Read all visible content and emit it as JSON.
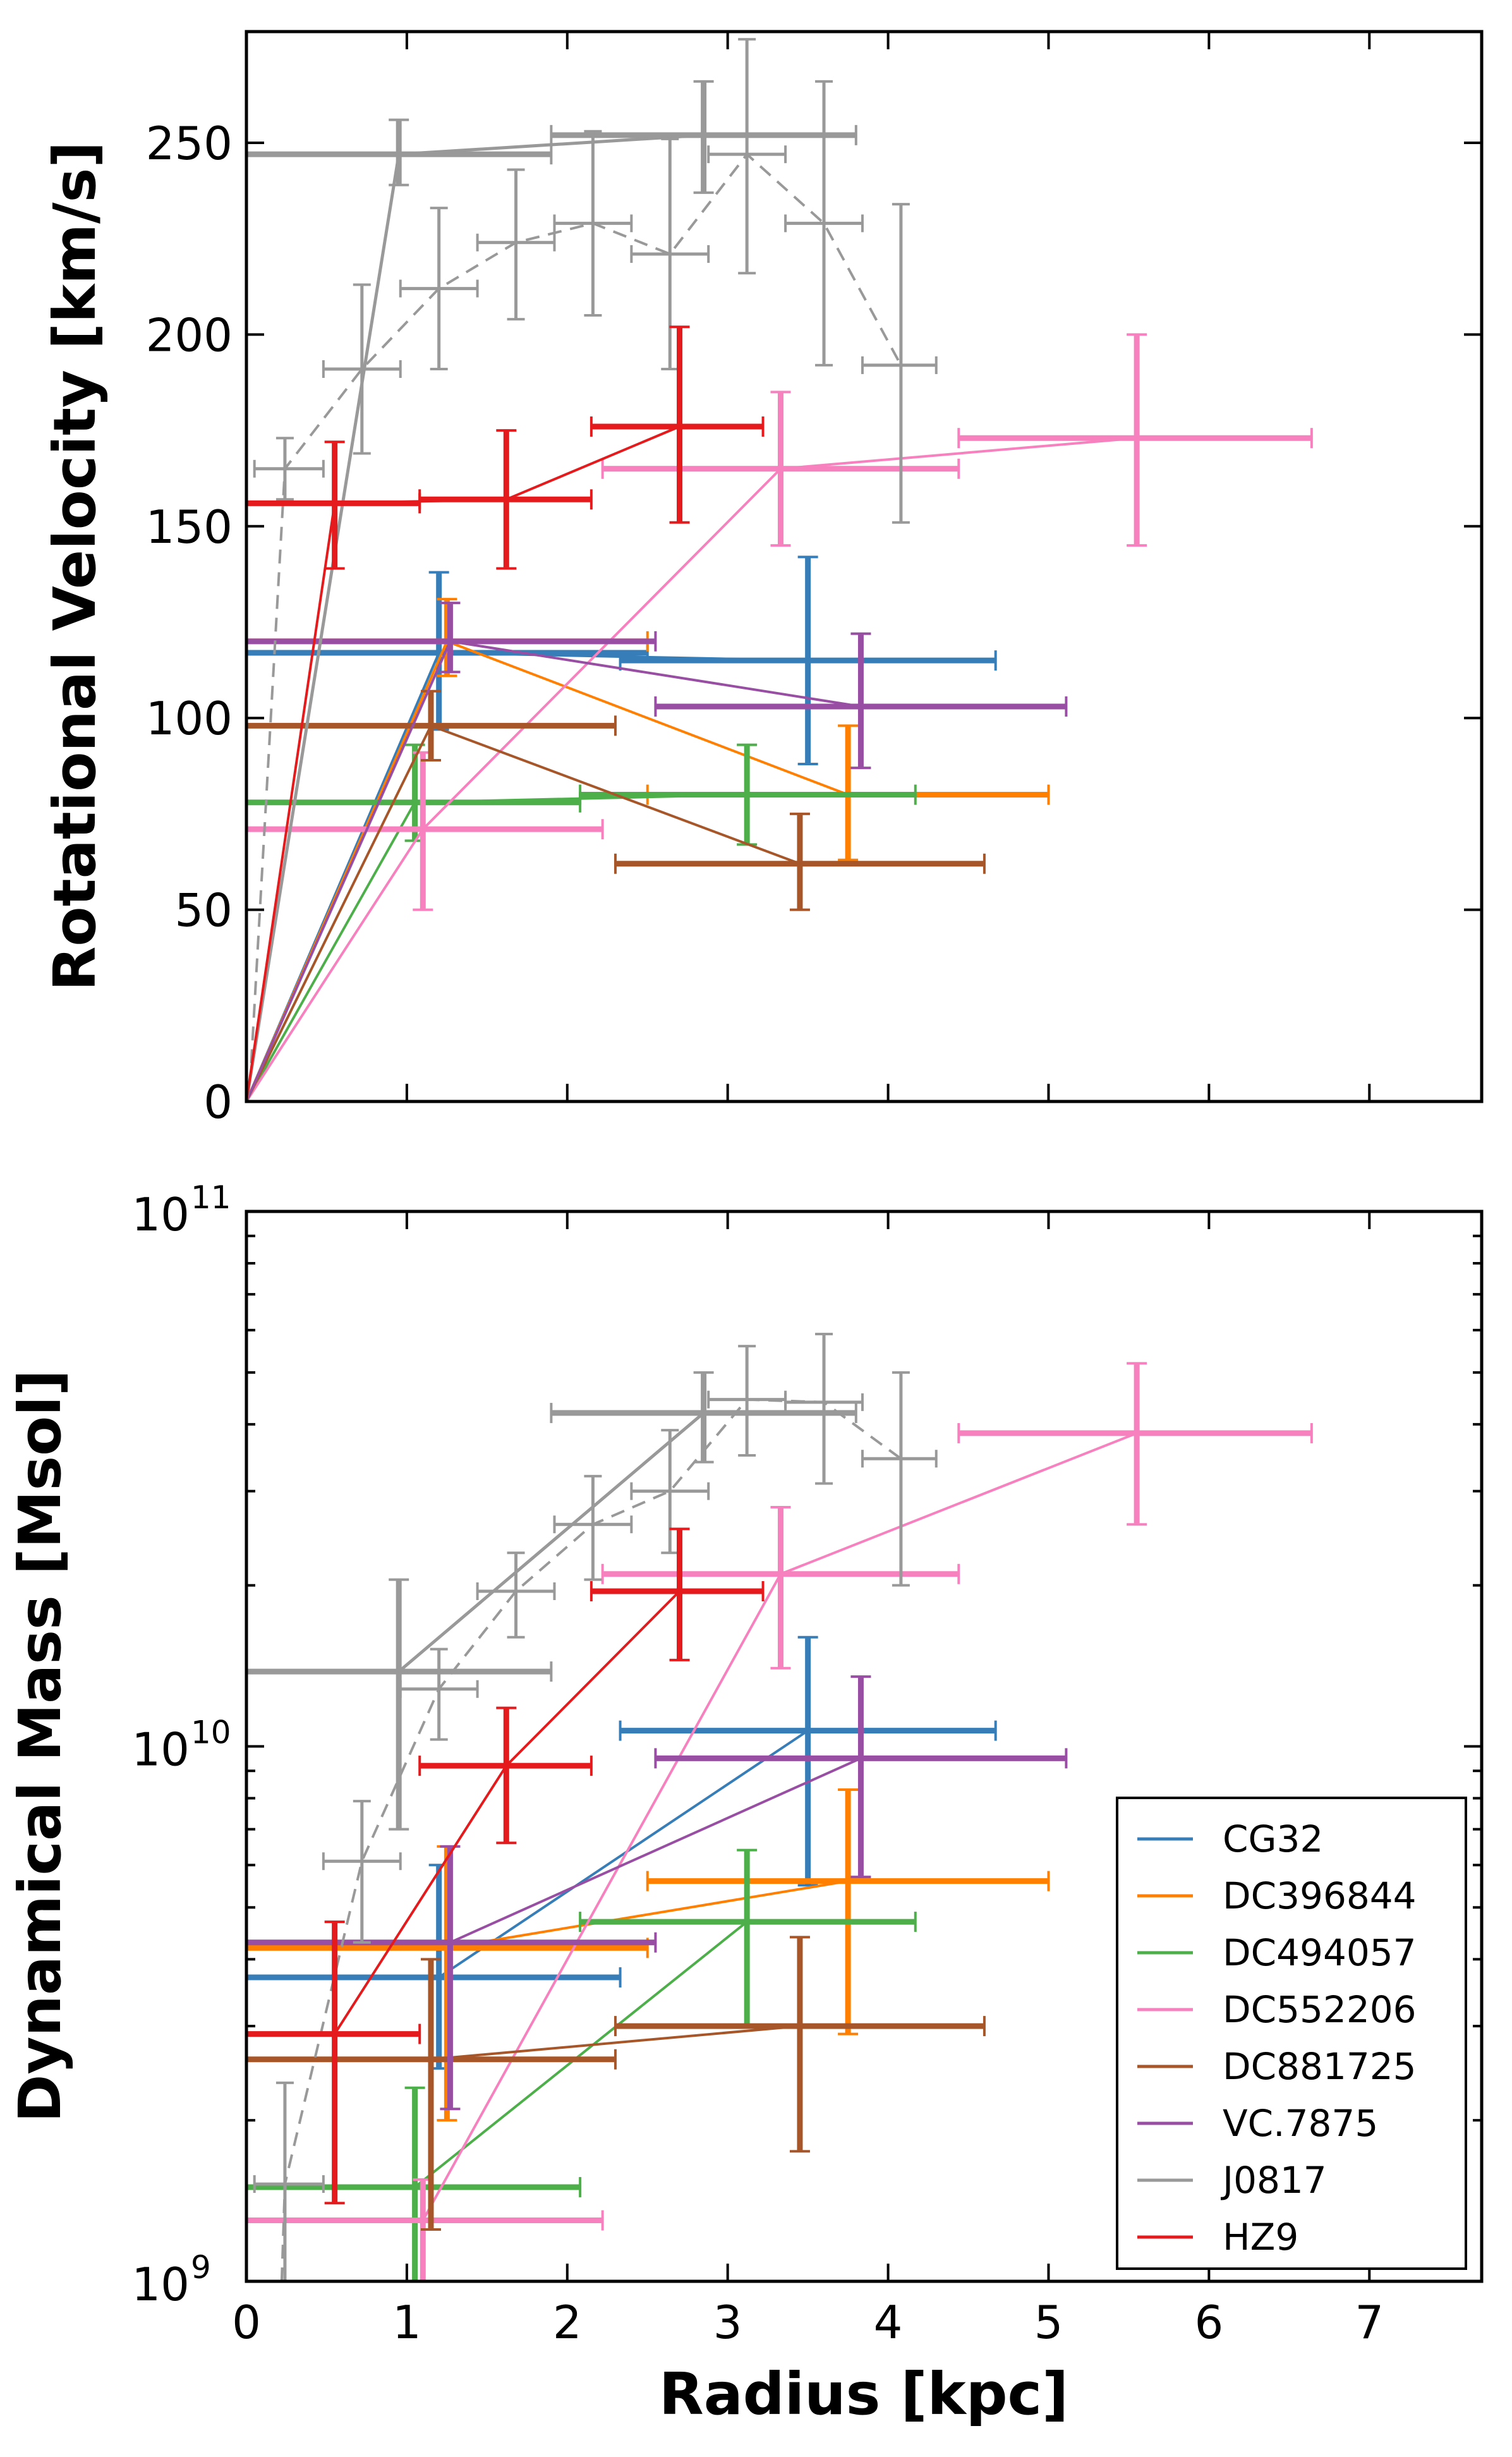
{
  "chart_data": [
    {
      "type": "line",
      "panel": "top",
      "title": "",
      "xlabel": "",
      "ylabel": "Rotational Velocity [km/s]",
      "xlim": [
        0,
        7.7
      ],
      "ylim": [
        0,
        279
      ],
      "yscale": "linear",
      "x_ticks": [
        0,
        1,
        2,
        3,
        4,
        5,
        6,
        7
      ],
      "y_ticks": [
        0,
        50,
        100,
        150,
        200,
        250
      ],
      "y_tick_labels": [
        "0",
        "50",
        "100",
        "150",
        "200",
        "250"
      ],
      "series": [
        {
          "name": "CG32",
          "color": "#377eb8",
          "lw": 5,
          "dashed": false,
          "points": [
            {
              "x": 1.2,
              "y": 117,
              "xlo": 0,
              "xhi": 2.5,
              "ylo": 97,
              "yhi": 138
            },
            {
              "x": 3.5,
              "y": 115,
              "xlo": 2.33,
              "xhi": 4.67,
              "ylo": 88,
              "yhi": 142
            }
          ]
        },
        {
          "name": "DC396844",
          "color": "#ff7f00",
          "lw": 5,
          "dashed": false,
          "points": [
            {
              "x": 1.25,
              "y": 120,
              "xlo": 0,
              "xhi": 2.5,
              "ylo": 111,
              "yhi": 131
            },
            {
              "x": 3.75,
              "y": 80,
              "xlo": 2.5,
              "xhi": 5.0,
              "ylo": 63,
              "yhi": 98
            }
          ]
        },
        {
          "name": "DC494057",
          "color": "#4daf4a",
          "lw": 5,
          "dashed": false,
          "points": [
            {
              "x": 1.05,
              "y": 78,
              "xlo": 0,
              "xhi": 2.08,
              "ylo": 68,
              "yhi": 93
            },
            {
              "x": 3.12,
              "y": 80,
              "xlo": 2.08,
              "xhi": 4.17,
              "ylo": 67,
              "yhi": 93
            }
          ]
        },
        {
          "name": "DC552206",
          "color": "#f781bf",
          "lw": 5,
          "dashed": false,
          "points": [
            {
              "x": 1.1,
              "y": 71,
              "xlo": 0,
              "xhi": 2.22,
              "ylo": 50,
              "yhi": 91
            },
            {
              "x": 3.33,
              "y": 165,
              "xlo": 2.22,
              "xhi": 4.44,
              "ylo": 145,
              "yhi": 185
            },
            {
              "x": 5.55,
              "y": 173,
              "xlo": 4.44,
              "xhi": 6.64,
              "ylo": 145,
              "yhi": 200
            }
          ]
        },
        {
          "name": "DC881725",
          "color": "#a65628",
          "lw": 5,
          "dashed": false,
          "points": [
            {
              "x": 1.15,
              "y": 98,
              "xlo": 0,
              "xhi": 2.3,
              "ylo": 89,
              "yhi": 107
            },
            {
              "x": 3.45,
              "y": 62,
              "xlo": 2.3,
              "xhi": 4.6,
              "ylo": 50,
              "yhi": 75
            }
          ]
        },
        {
          "name": "VC.7875",
          "color": "#984ea3",
          "lw": 5,
          "dashed": false,
          "points": [
            {
              "x": 1.27,
              "y": 120,
              "xlo": 0,
              "xhi": 2.55,
              "ylo": 112,
              "yhi": 130
            },
            {
              "x": 3.83,
              "y": 103,
              "xlo": 2.55,
              "xhi": 5.11,
              "ylo": 87,
              "yhi": 122
            }
          ]
        },
        {
          "name": "J0817",
          "color": "#999999",
          "lw": 6,
          "dashed": false,
          "points": [
            {
              "x": 0.95,
              "y": 247,
              "xlo": 0,
              "xhi": 1.9,
              "ylo": 239,
              "yhi": 256
            },
            {
              "x": 2.85,
              "y": 252,
              "xlo": 1.9,
              "xhi": 3.8,
              "ylo": 237,
              "yhi": 266
            }
          ]
        },
        {
          "name": "J0817 (fine)",
          "color": "#999999",
          "lw": 3.5,
          "dashed": true,
          "points": [
            {
              "x": 0.24,
              "y": 165,
              "xlo": 0.05,
              "xhi": 0.48,
              "ylo": 157,
              "yhi": 173
            },
            {
              "x": 0.72,
              "y": 191,
              "xlo": 0.48,
              "xhi": 0.96,
              "ylo": 169,
              "yhi": 213
            },
            {
              "x": 1.2,
              "y": 212,
              "xlo": 0.96,
              "xhi": 1.44,
              "ylo": 191,
              "yhi": 233
            },
            {
              "x": 1.68,
              "y": 224,
              "xlo": 1.44,
              "xhi": 1.92,
              "ylo": 204,
              "yhi": 243
            },
            {
              "x": 2.16,
              "y": 229,
              "xlo": 1.92,
              "xhi": 2.4,
              "ylo": 205,
              "yhi": 253
            },
            {
              "x": 2.64,
              "y": 221,
              "xlo": 2.4,
              "xhi": 2.88,
              "ylo": 191,
              "yhi": 251
            },
            {
              "x": 3.12,
              "y": 247,
              "xlo": 2.88,
              "xhi": 3.36,
              "ylo": 216,
              "yhi": 277
            },
            {
              "x": 3.6,
              "y": 229,
              "xlo": 3.36,
              "xhi": 3.84,
              "ylo": 192,
              "yhi": 266
            },
            {
              "x": 4.08,
              "y": 192,
              "xlo": 3.84,
              "xhi": 4.3,
              "ylo": 151,
              "yhi": 234
            }
          ]
        },
        {
          "name": "HZ9",
          "color": "#e41a1c",
          "lw": 5,
          "dashed": false,
          "points": [
            {
              "x": 0.55,
              "y": 156,
              "xlo": 0,
              "xhi": 1.08,
              "ylo": 139,
              "yhi": 172
            },
            {
              "x": 1.62,
              "y": 157,
              "xlo": 1.08,
              "xhi": 2.15,
              "ylo": 139,
              "yhi": 175
            },
            {
              "x": 2.7,
              "y": 176,
              "xlo": 2.15,
              "xhi": 3.22,
              "ylo": 151,
              "yhi": 202
            }
          ]
        }
      ]
    },
    {
      "type": "line",
      "panel": "bottom",
      "title": "",
      "xlabel": "Radius [kpc]",
      "ylabel": "Dynamical Mass [Msol]",
      "xlim": [
        0,
        7.7
      ],
      "ylim": [
        1000000000.0,
        100000000000.0
      ],
      "yscale": "log",
      "x_ticks": [
        0,
        1,
        2,
        3,
        4,
        5,
        6,
        7
      ],
      "x_tick_labels": [
        "0",
        "1",
        "2",
        "3",
        "4",
        "5",
        "6",
        "7"
      ],
      "y_ticks": [
        {
          "value": 1000000000.0,
          "base": "10",
          "exp": "9"
        },
        {
          "value": 10000000000.0,
          "base": "10",
          "exp": "10"
        },
        {
          "value": 100000000000.0,
          "base": "10",
          "exp": "11"
        }
      ],
      "legend": {
        "position": "lower-right",
        "entries": [
          "CG32",
          "DC396844",
          "DC494057",
          "DC552206",
          "DC881725",
          "VC.7875",
          "J0817",
          "HZ9"
        ]
      },
      "series": [
        {
          "name": "CG32",
          "color": "#377eb8",
          "lw": 5,
          "dashed": false,
          "points": [
            {
              "x": 1.2,
              "y": 3700000000.0,
              "xlo": 0,
              "xhi": 2.33,
              "ylo": 2500000000.0,
              "yhi": 6000000000.0
            },
            {
              "x": 3.5,
              "y": 10700000000.0,
              "xlo": 2.33,
              "xhi": 4.67,
              "ylo": 5500000000.0,
              "yhi": 16000000000.0
            }
          ]
        },
        {
          "name": "DC396844",
          "color": "#ff7f00",
          "lw": 5,
          "dashed": false,
          "points": [
            {
              "x": 1.25,
              "y": 4200000000.0,
              "xlo": 0,
              "xhi": 2.5,
              "ylo": 2000000000.0,
              "yhi": 6500000000.0
            },
            {
              "x": 3.75,
              "y": 5600000000.0,
              "xlo": 2.5,
              "xhi": 5.0,
              "ylo": 2900000000.0,
              "yhi": 8300000000.0
            }
          ]
        },
        {
          "name": "DC494057",
          "color": "#4daf4a",
          "lw": 5,
          "dashed": false,
          "points": [
            {
              "x": 1.05,
              "y": 1500000000.0,
              "xlo": 0,
              "xhi": 2.08,
              "ylo": 1000000000.0,
              "yhi": 2300000000.0
            },
            {
              "x": 3.12,
              "y": 4700000000.0,
              "xlo": 2.08,
              "xhi": 4.17,
              "ylo": 3000000000.0,
              "yhi": 6400000000.0
            }
          ]
        },
        {
          "name": "DC552206",
          "color": "#f781bf",
          "lw": 5,
          "dashed": false,
          "points": [
            {
              "x": 1.1,
              "y": 1300000000.0,
              "xlo": 0,
              "xhi": 2.22,
              "ylo": 1000000000.0,
              "yhi": 1550000000.0
            },
            {
              "x": 3.33,
              "y": 21000000000.0,
              "xlo": 2.22,
              "xhi": 4.44,
              "ylo": 14000000000.0,
              "yhi": 28000000000.0
            },
            {
              "x": 5.55,
              "y": 38500000000.0,
              "xlo": 4.44,
              "xhi": 6.64,
              "ylo": 26000000000.0,
              "yhi": 52000000000.0
            }
          ]
        },
        {
          "name": "DC881725",
          "color": "#a65628",
          "lw": 5,
          "dashed": false,
          "points": [
            {
              "x": 1.15,
              "y": 2600000000.0,
              "xlo": 0,
              "xhi": 2.3,
              "ylo": 1250000000.0,
              "yhi": 4000000000.0
            },
            {
              "x": 3.45,
              "y": 3000000000.0,
              "xlo": 2.3,
              "xhi": 4.6,
              "ylo": 1750000000.0,
              "yhi": 4400000000.0
            }
          ]
        },
        {
          "name": "VC.7875",
          "color": "#984ea3",
          "lw": 5,
          "dashed": false,
          "points": [
            {
              "x": 1.27,
              "y": 4300000000.0,
              "xlo": 0,
              "xhi": 2.55,
              "ylo": 2100000000.0,
              "yhi": 6500000000.0
            },
            {
              "x": 3.83,
              "y": 9500000000.0,
              "xlo": 2.55,
              "xhi": 5.11,
              "ylo": 5700000000.0,
              "yhi": 13500000000.0
            }
          ]
        },
        {
          "name": "J0817",
          "color": "#999999",
          "lw": 6,
          "dashed": false,
          "points": [
            {
              "x": 0.95,
              "y": 13800000000.0,
              "xlo": 0,
              "xhi": 1.9,
              "ylo": 7000000000.0,
              "yhi": 20500000000.0
            },
            {
              "x": 2.85,
              "y": 42000000000.0,
              "xlo": 1.9,
              "xhi": 3.8,
              "ylo": 34000000000.0,
              "yhi": 50000000000.0
            }
          ]
        },
        {
          "name": "J0817 (fine)",
          "color": "#999999",
          "lw": 3.5,
          "dashed": true,
          "points": [
            {
              "x": 0.24,
              "y": 1520000000.0,
              "xlo": 0.05,
              "xhi": 0.48,
              "ylo": 1000000000.0,
              "yhi": 2350000000.0
            },
            {
              "x": 0.72,
              "y": 6100000000.0,
              "xlo": 0.48,
              "xhi": 0.96,
              "ylo": 4300000000.0,
              "yhi": 7900000000.0
            },
            {
              "x": 1.2,
              "y": 12800000000.0,
              "xlo": 0.96,
              "xhi": 1.44,
              "ylo": 10300000000.0,
              "yhi": 15200000000.0
            },
            {
              "x": 1.68,
              "y": 19500000000.0,
              "xlo": 1.44,
              "xhi": 1.92,
              "ylo": 16000000000.0,
              "yhi": 23000000000.0
            },
            {
              "x": 2.16,
              "y": 26000000000.0,
              "xlo": 1.92,
              "xhi": 2.4,
              "ylo": 20500000000.0,
              "yhi": 32000000000.0
            },
            {
              "x": 2.64,
              "y": 30000000000.0,
              "xlo": 2.4,
              "xhi": 2.88,
              "ylo": 23000000000.0,
              "yhi": 39000000000.0
            },
            {
              "x": 3.12,
              "y": 44500000000.0,
              "xlo": 2.88,
              "xhi": 3.36,
              "ylo": 35000000000.0,
              "yhi": 56000000000.0
            },
            {
              "x": 3.6,
              "y": 44000000000.0,
              "xlo": 3.36,
              "xhi": 3.84,
              "ylo": 31000000000.0,
              "yhi": 59000000000.0
            },
            {
              "x": 4.08,
              "y": 34500000000.0,
              "xlo": 3.84,
              "xhi": 4.3,
              "ylo": 20000000000.0,
              "yhi": 50000000000.0
            }
          ]
        },
        {
          "name": "HZ9",
          "color": "#e41a1c",
          "lw": 5,
          "dashed": false,
          "points": [
            {
              "x": 0.55,
              "y": 2900000000.0,
              "xlo": 0,
              "xhi": 1.08,
              "ylo": 1400000000.0,
              "yhi": 4700000000.0
            },
            {
              "x": 1.62,
              "y": 9200000000.0,
              "xlo": 1.08,
              "xhi": 2.15,
              "ylo": 6600000000.0,
              "yhi": 11800000000.0
            },
            {
              "x": 2.7,
              "y": 19500000000.0,
              "xlo": 2.15,
              "xhi": 3.22,
              "ylo": 14500000000.0,
              "yhi": 25500000000.0
            }
          ]
        }
      ]
    }
  ]
}
